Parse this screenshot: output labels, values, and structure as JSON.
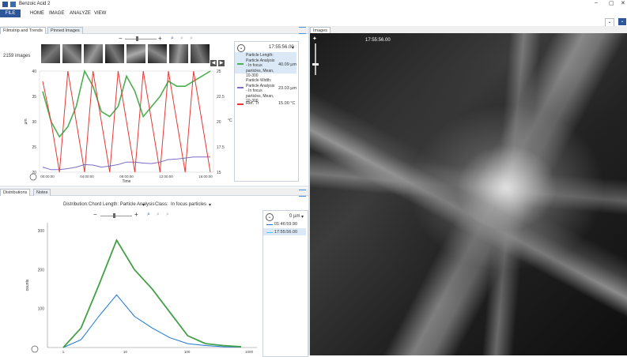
{
  "window": {
    "title": "Benzoic Acid 2",
    "controls": [
      "–",
      "▢",
      "✕"
    ]
  },
  "ribbon": {
    "tabs": [
      "FILE",
      "HOME",
      "IMAGE",
      "ANALYZE",
      "VIEW"
    ]
  },
  "left_top": {
    "tabs": [
      "Filmstrip and Trends",
      "Pinned Images"
    ],
    "filmstrip": {
      "count_label": "2159 images",
      "zoom_minus": "−",
      "zoom_plus": "+"
    },
    "legend": {
      "time": "17:55:56.00",
      "items": [
        {
          "name": "Particle Length: Particle Analysis - In focus particles, Mean, 10-300",
          "value": "40.09 µm",
          "color": "#4caf50"
        },
        {
          "name": "Particle Width: Particle Analysis - In focus particles, Mean, 10-300",
          "value": "23.03 µm",
          "color": "#7e6cc9"
        },
        {
          "name": "Ref. Tr",
          "value": "15.00 °C",
          "color": "#e53935"
        }
      ]
    }
  },
  "left_bottom": {
    "tabs": [
      "Distributions",
      "Notes"
    ],
    "distribution_label": "Distribution:",
    "distribution_value": "Chord Length: Particle Analysis",
    "class_label": "Class:",
    "class_value": "In focus particles",
    "zoom_minus": "−",
    "zoom_plus": "+",
    "legend": {
      "value": "0 µm",
      "items": [
        {
          "name": "01:46:59.90",
          "color": "#1976d2"
        },
        {
          "name": "17:55:56.00",
          "color": "#4fc3f7"
        }
      ]
    }
  },
  "right": {
    "tab": "Images",
    "timestamp": "17:55:56.00"
  },
  "chart_data": [
    {
      "type": "line",
      "xlabel": "Time",
      "ylabel": "µm",
      "x_ticks": [
        "00:00:00",
        "04:00:00",
        "08:00:00",
        "12:00:00",
        "16:00:00"
      ],
      "y_ticks_left": [
        "20",
        "25",
        "30",
        "35",
        "40"
      ],
      "y_ticks_right": [
        "15",
        "17.5",
        "20",
        "22.5",
        "25"
      ],
      "y_right_label": "°C",
      "series": [
        {
          "name": "Particle Length: Particle Analysis - In focus particles, Mean, 10-300",
          "values": [
            36,
            30,
            27,
            29,
            33,
            40,
            37,
            32,
            31,
            33,
            39,
            36,
            31,
            33,
            35,
            38,
            37,
            37,
            38,
            39,
            40
          ]
        },
        {
          "name": "Particle Width: Particle Analysis - In focus particles, Mean, 10-300",
          "values": [
            21,
            20.5,
            20.5,
            20.7,
            21,
            21.5,
            21.4,
            21,
            21.2,
            21.5,
            22,
            22,
            21.8,
            21.7,
            22,
            22.5,
            22.6,
            22.8,
            23,
            23,
            23
          ]
        },
        {
          "name": "Ref. Tr",
          "values": [
            24,
            20,
            15,
            25,
            20,
            15,
            25,
            20,
            15,
            25,
            20,
            15,
            25,
            20,
            15,
            25,
            20,
            15,
            25,
            20,
            15
          ]
        }
      ]
    },
    {
      "type": "line",
      "xlabel": "",
      "ylabel": "counts",
      "x_ticks": [
        "1",
        "10",
        "100",
        "1000"
      ],
      "y_ticks": [
        "100",
        "200",
        "300"
      ],
      "series": [
        {
          "name": "01:46:59.90",
          "values": [
            0,
            20,
            80,
            135,
            80,
            50,
            25,
            10,
            5,
            2,
            1
          ]
        },
        {
          "name": "17:55:56.00",
          "values": [
            0,
            50,
            160,
            275,
            200,
            150,
            90,
            30,
            10,
            5,
            2
          ]
        }
      ]
    }
  ]
}
